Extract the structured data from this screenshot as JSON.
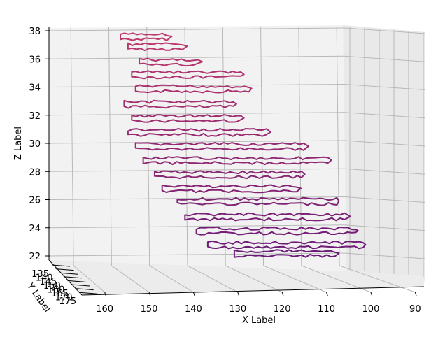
{
  "chart_data": {
    "type": "line3d",
    "title": "",
    "xlabel": "X Label",
    "ylabel": "Y Label",
    "zlabel": "Z Label",
    "x_ticks": [
      "160",
      "150",
      "140",
      "130",
      "120",
      "110",
      "100",
      "90"
    ],
    "y_ticks": [
      "135",
      "140",
      "145",
      "150",
      "155",
      "160",
      "165",
      "170",
      "175"
    ],
    "y_tick_labels_visible": [
      "135",
      "140",
      "145",
      "150",
      "160",
      "165",
      "170",
      "175"
    ],
    "z_ticks": [
      "22",
      "24",
      "26",
      "28",
      "30",
      "32",
      "34",
      "36",
      "38"
    ],
    "xlim": [
      165,
      88
    ],
    "zlim": [
      22,
      38
    ],
    "grid": true,
    "colors": {
      "low": "#6a1a78",
      "high": "#c0396b"
    },
    "series": [
      {
        "z": 37.6,
        "x_start": 158,
        "x_end": 145
      },
      {
        "z": 36.9,
        "x_start": 156,
        "x_end": 141
      },
      {
        "z": 35.8,
        "x_start": 153,
        "x_end": 137
      },
      {
        "z": 34.9,
        "x_start": 155,
        "x_end": 126
      },
      {
        "z": 33.9,
        "x_start": 154,
        "x_end": 124
      },
      {
        "z": 32.8,
        "x_start": 157,
        "x_end": 128
      },
      {
        "z": 31.8,
        "x_start": 155,
        "x_end": 126
      },
      {
        "z": 30.8,
        "x_start": 156,
        "x_end": 119
      },
      {
        "z": 29.8,
        "x_start": 154,
        "x_end": 109
      },
      {
        "z": 28.8,
        "x_start": 152,
        "x_end": 103
      },
      {
        "z": 27.8,
        "x_start": 149,
        "x_end": 110
      },
      {
        "z": 26.8,
        "x_start": 147,
        "x_end": 111
      },
      {
        "z": 25.9,
        "x_start": 143,
        "x_end": 101
      },
      {
        "z": 24.8,
        "x_start": 141,
        "x_end": 98
      },
      {
        "z": 23.8,
        "x_start": 138,
        "x_end": 96
      },
      {
        "z": 22.8,
        "x_start": 135,
        "x_end": 94
      },
      {
        "z": 22.2,
        "x_start": 128,
        "x_end": 101
      }
    ]
  }
}
